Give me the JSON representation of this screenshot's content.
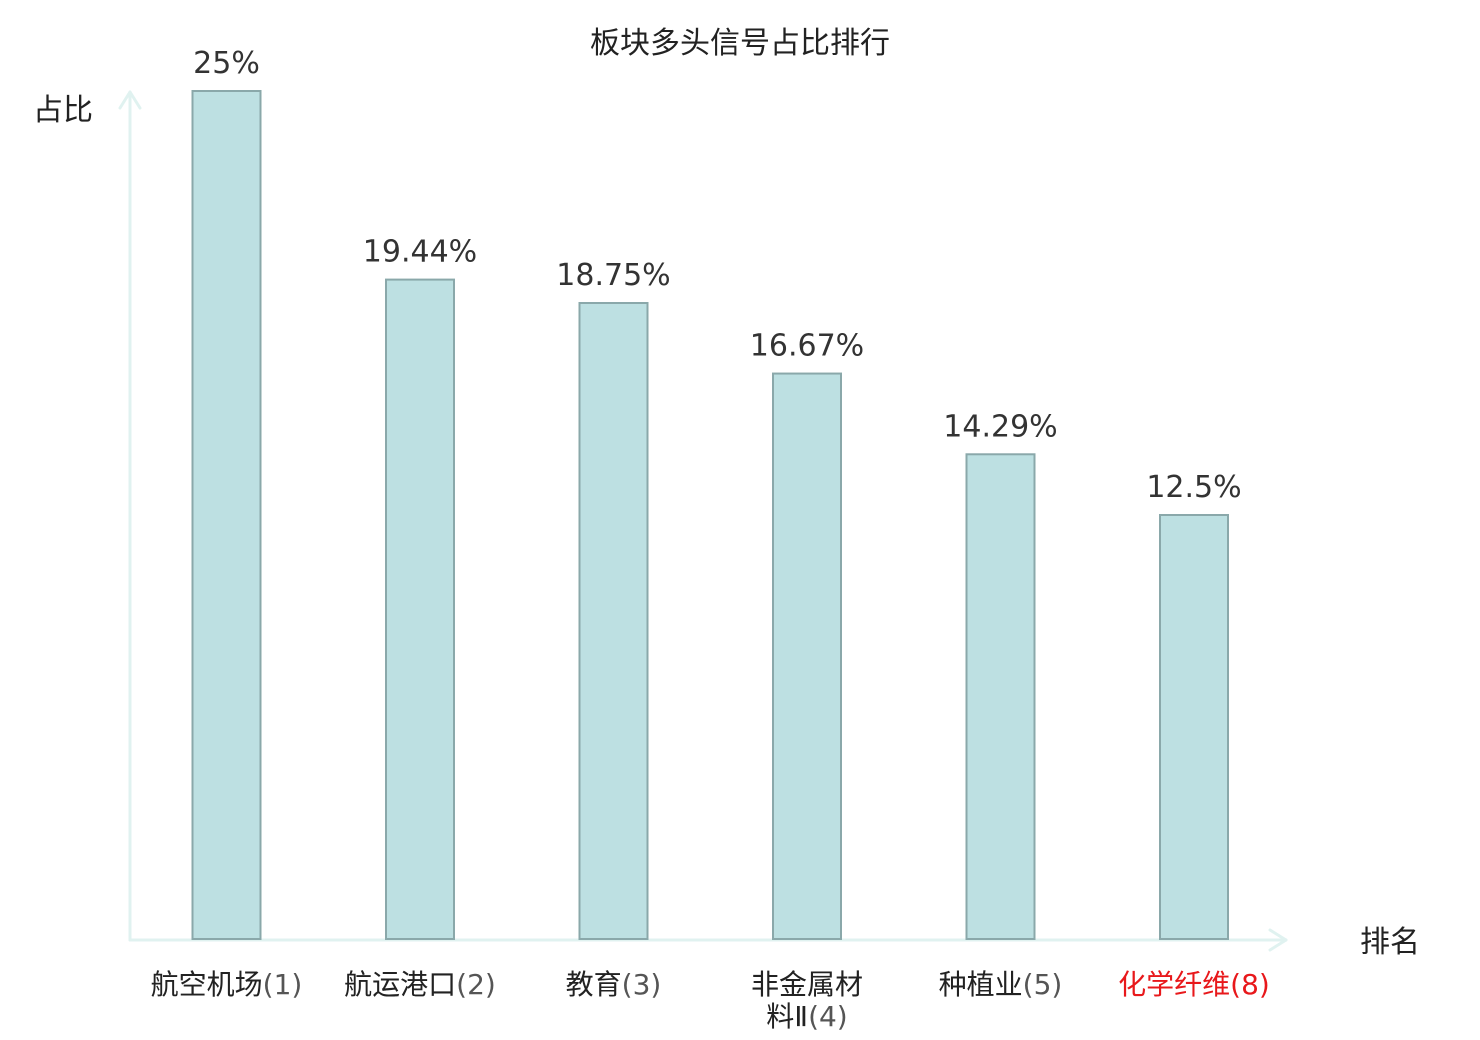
{
  "chart_data": {
    "type": "bar",
    "title": "板块多头信号占比排行",
    "ylabel": "占比",
    "xlabel": "排名",
    "categories": [
      {
        "name": "航空机场",
        "rank": "(1)",
        "highlight": false
      },
      {
        "name": "航运港口",
        "rank": "(2)",
        "highlight": false
      },
      {
        "name": "教育",
        "rank": "(3)",
        "highlight": false
      },
      {
        "name": "非金属材料Ⅱ",
        "rank": "(4)",
        "highlight": false
      },
      {
        "name": "种植业",
        "rank": "(5)",
        "highlight": false
      },
      {
        "name": "化学纤维",
        "rank": "(8)",
        "highlight": true
      }
    ],
    "values": [
      25,
      19.44,
      18.75,
      16.67,
      14.29,
      12.5
    ],
    "value_labels": [
      "25%",
      "19.44%",
      "18.75%",
      "16.67%",
      "14.29%",
      "12.5%"
    ],
    "ylim": [
      0,
      25
    ],
    "grid": false,
    "colors": {
      "bar_fill": "#bde0e2",
      "bar_stroke": "#8aa8aa",
      "axis": "#e0f2f0",
      "label_default": "#222222",
      "rank_default": "#555555",
      "highlight": "#e8181b"
    }
  }
}
